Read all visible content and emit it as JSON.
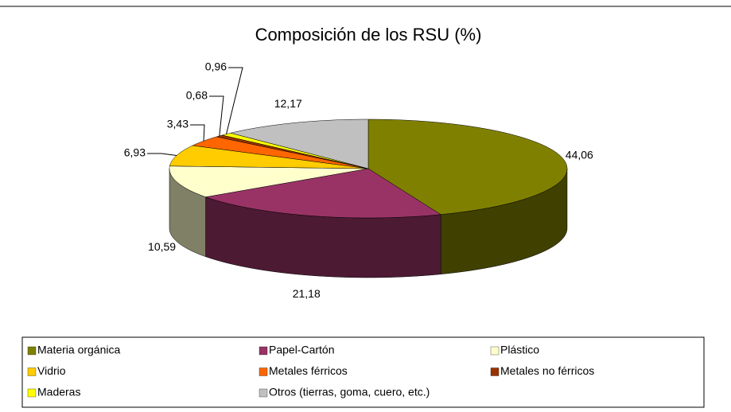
{
  "chart_data": {
    "type": "pie3d",
    "title": "Composición de los RSU (%)",
    "categories": [
      "Materia orgánica",
      "Papel-Cartón",
      "Plástico",
      "Vidrio",
      "Metales férricos",
      "Metales no férricos",
      "Maderas",
      "Otros (tierras, goma, cuero, etc.)"
    ],
    "values": [
      44.06,
      21.18,
      10.59,
      6.93,
      3.43,
      0.68,
      0.96,
      12.17
    ],
    "value_labels": [
      "44,06",
      "21,18",
      "10,59",
      "6,93",
      "3,43",
      "0,68",
      "0,96",
      "12,17"
    ],
    "colors": [
      "#808000",
      "#993366",
      "#ffffcc",
      "#ffcc00",
      "#ff6600",
      "#993300",
      "#ffff00",
      "#c0c0c0"
    ],
    "legend": "bottom"
  }
}
